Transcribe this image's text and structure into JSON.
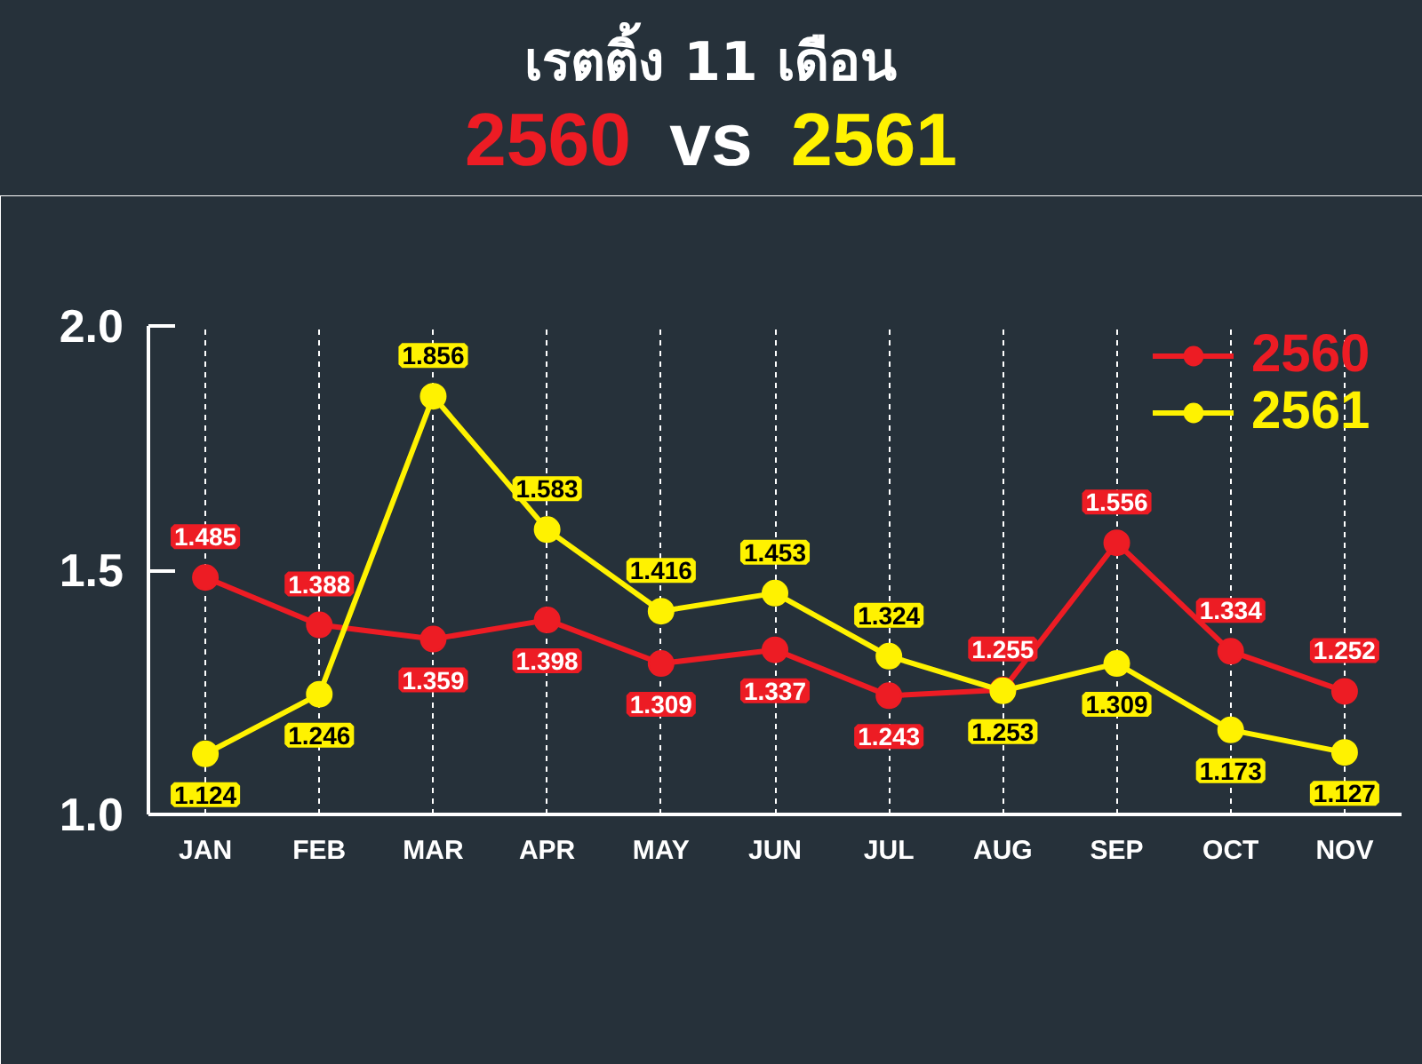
{
  "chart_data": {
    "type": "line",
    "title": "เรตติ้ง 11 เดือน",
    "subtitle": "2560 vs 2561",
    "categories": [
      "JAN",
      "FEB",
      "MAR",
      "APR",
      "MAY",
      "JUN",
      "JUL",
      "AUG",
      "SEP",
      "OCT",
      "NOV"
    ],
    "series": [
      {
        "name": "2560",
        "color": "#ed1c24",
        "values": [
          1.485,
          1.388,
          1.359,
          1.398,
          1.309,
          1.337,
          1.243,
          1.255,
          1.556,
          1.334,
          1.252
        ]
      },
      {
        "name": "2561",
        "color": "#fff200",
        "values": [
          1.124,
          1.246,
          1.856,
          1.583,
          1.416,
          1.453,
          1.324,
          1.253,
          1.309,
          1.173,
          1.127
        ]
      }
    ],
    "ylim": [
      1,
      2
    ],
    "yticks": [
      {
        "value": 1,
        "label": "1.0"
      },
      1.5,
      {
        "value": 2,
        "label": "2.0"
      }
    ],
    "grid": "x",
    "legend": "top right",
    "marker": "circle",
    "line_style": "solid",
    "data_labels": true
  }
}
